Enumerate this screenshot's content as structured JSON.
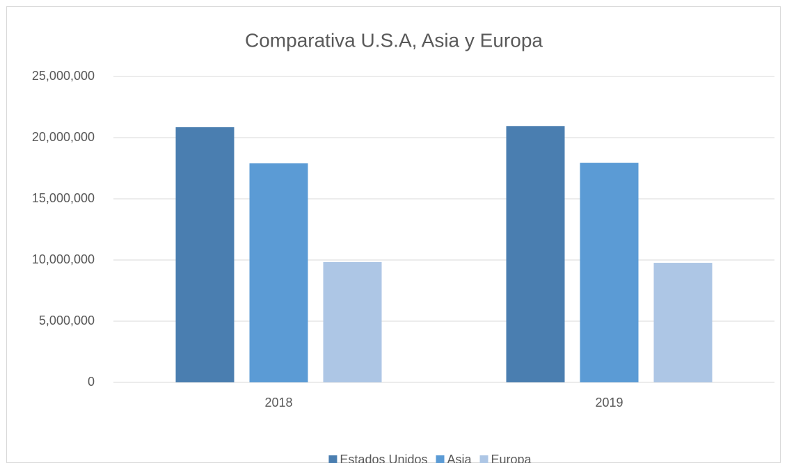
{
  "chart_data": {
    "type": "bar",
    "title": "Comparativa U.S.A, Asia y Europa",
    "categories": [
      "2018",
      "2019"
    ],
    "series": [
      {
        "name": "Estados Unidos",
        "color": "#4a7eb0",
        "values": [
          20850000,
          20950000
        ]
      },
      {
        "name": "Asia",
        "color": "#5b9bd5",
        "values": [
          17900000,
          17950000
        ]
      },
      {
        "name": "Europa",
        "color": "#adc6e5",
        "values": [
          9830000,
          9770000
        ]
      }
    ],
    "ylim": [
      0,
      25000000
    ],
    "yticks": [
      0,
      {
        "value": 5000000,
        "label": "5,000,000"
      },
      {
        "value": 10000000,
        "label": "10,000,000"
      },
      {
        "value": 15000000,
        "label": "15,000,000"
      },
      {
        "value": 20000000,
        "label": "20,000,000"
      },
      {
        "value": 25000000,
        "label": "25,000,000"
      }
    ],
    "grid": true,
    "legend": "bottom"
  }
}
